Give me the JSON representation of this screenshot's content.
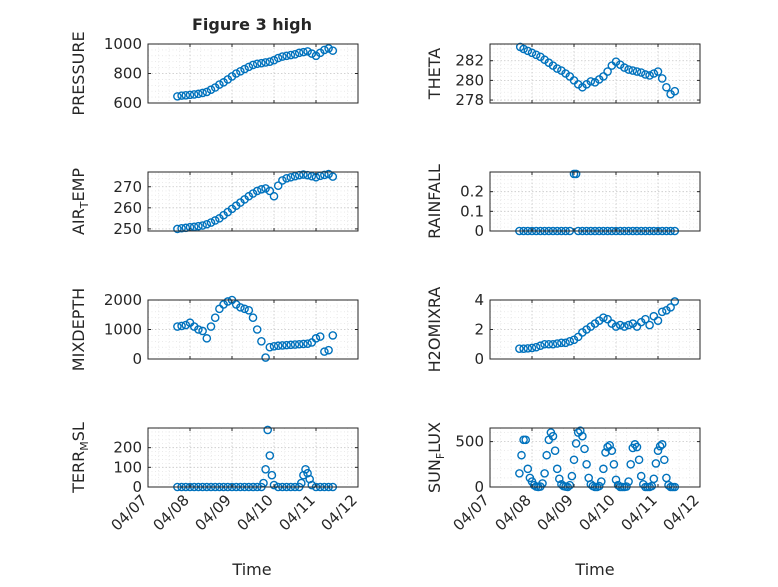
{
  "figure": {
    "title": "Figure 3 high",
    "xlabel": "Time"
  },
  "colors": {
    "marker": "#0072BD",
    "axes": "#262626"
  },
  "chart_data": [
    {
      "type": "scatter",
      "ylabel": "PRESSURE",
      "ylim": [
        600,
        1000
      ],
      "yticks": [
        600,
        800,
        1000
      ],
      "grid": true,
      "x": [
        7.7,
        7.8,
        7.9,
        8.0,
        8.1,
        8.2,
        8.3,
        8.4,
        8.5,
        8.6,
        8.7,
        8.8,
        8.9,
        9.0,
        9.1,
        9.2,
        9.3,
        9.4,
        9.5,
        9.6,
        9.7,
        9.8,
        9.9,
        10.0,
        10.1,
        10.2,
        10.3,
        10.4,
        10.5,
        10.6,
        10.7,
        10.8,
        10.9,
        11.0,
        11.1,
        11.2,
        11.3,
        11.4
      ],
      "y": [
        645,
        650,
        652,
        655,
        658,
        662,
        668,
        675,
        690,
        705,
        725,
        740,
        760,
        780,
        800,
        815,
        830,
        845,
        858,
        866,
        870,
        875,
        880,
        890,
        905,
        915,
        920,
        925,
        930,
        940,
        945,
        950,
        935,
        920,
        940,
        960,
        970,
        955
      ]
    },
    {
      "type": "scatter",
      "ylabel": "THETA",
      "ylim": [
        277.7,
        283.7
      ],
      "yticks": [
        278,
        280,
        282
      ],
      "grid": true,
      "x": [
        7.72,
        7.8,
        7.9,
        8.0,
        8.1,
        8.2,
        8.3,
        8.4,
        8.5,
        8.6,
        8.7,
        8.8,
        8.9,
        9.0,
        9.1,
        9.2,
        9.3,
        9.4,
        9.5,
        9.6,
        9.7,
        9.8,
        9.9,
        10.0,
        10.1,
        10.2,
        10.3,
        10.4,
        10.5,
        10.6,
        10.7,
        10.8,
        10.9,
        11.0,
        11.1,
        11.2,
        11.3,
        11.4
      ],
      "y": [
        283.4,
        283.2,
        283.0,
        282.8,
        282.6,
        282.4,
        282.1,
        281.8,
        281.5,
        281.2,
        281.0,
        280.7,
        280.4,
        280.0,
        279.6,
        279.3,
        279.6,
        279.9,
        279.8,
        280.1,
        280.4,
        280.9,
        281.5,
        281.9,
        281.6,
        281.3,
        281.1,
        281.0,
        280.9,
        280.8,
        280.6,
        280.5,
        280.7,
        280.9,
        280.2,
        279.3,
        278.6,
        278.9
      ]
    },
    {
      "type": "scatter",
      "ylabel": "AIR_TEMP",
      "ylim": [
        249,
        277
      ],
      "yticks": [
        250,
        260,
        270
      ],
      "grid": true,
      "x": [
        7.7,
        7.8,
        7.9,
        8.0,
        8.1,
        8.2,
        8.3,
        8.4,
        8.5,
        8.6,
        8.7,
        8.8,
        8.9,
        9.0,
        9.1,
        9.2,
        9.3,
        9.4,
        9.5,
        9.6,
        9.7,
        9.8,
        9.9,
        10.0,
        10.1,
        10.2,
        10.3,
        10.4,
        10.5,
        10.6,
        10.7,
        10.8,
        10.9,
        11.0,
        11.1,
        11.2,
        11.3,
        11.4
      ],
      "y": [
        250.0,
        250.3,
        250.5,
        250.8,
        251.0,
        251.3,
        251.6,
        252.2,
        253.0,
        254.0,
        255.0,
        256.5,
        258.0,
        259.5,
        261.0,
        262.5,
        264.0,
        265.5,
        266.8,
        268.0,
        268.8,
        269.2,
        268.0,
        265.5,
        270.5,
        273.0,
        274.0,
        274.5,
        275.0,
        275.5,
        275.8,
        275.5,
        275.0,
        274.5,
        275.2,
        275.6,
        276.0,
        274.8
      ]
    },
    {
      "type": "scatter",
      "ylabel": "RAINFALL",
      "ylim": [
        0,
        0.3
      ],
      "yticks": [
        0,
        0.1,
        0.2
      ],
      "grid": true,
      "x": [
        7.7,
        7.8,
        7.9,
        8.0,
        8.1,
        8.2,
        8.3,
        8.4,
        8.5,
        8.6,
        8.7,
        8.8,
        8.9,
        9.0,
        9.05,
        9.1,
        9.2,
        9.3,
        9.4,
        9.5,
        9.6,
        9.7,
        9.8,
        9.9,
        10.0,
        10.1,
        10.2,
        10.3,
        10.4,
        10.5,
        10.6,
        10.7,
        10.8,
        10.9,
        11.0,
        11.1,
        11.2,
        11.3,
        11.4
      ],
      "y": [
        0,
        0,
        0,
        0,
        0,
        0,
        0,
        0,
        0,
        0,
        0,
        0,
        0,
        0.29,
        0.29,
        0,
        0,
        0,
        0,
        0,
        0,
        0,
        0,
        0,
        0,
        0,
        0,
        0,
        0,
        0,
        0,
        0,
        0,
        0,
        0,
        0,
        0,
        0,
        0
      ]
    },
    {
      "type": "scatter",
      "ylabel": "MIXDEPTH",
      "ylim": [
        0,
        2000
      ],
      "yticks": [
        0,
        1000,
        2000
      ],
      "grid": true,
      "x": [
        7.7,
        7.8,
        7.9,
        8.0,
        8.1,
        8.2,
        8.3,
        8.4,
        8.5,
        8.6,
        8.7,
        8.8,
        8.9,
        9.0,
        9.1,
        9.2,
        9.3,
        9.4,
        9.5,
        9.6,
        9.7,
        9.8,
        9.9,
        10.0,
        10.1,
        10.2,
        10.3,
        10.4,
        10.5,
        10.6,
        10.7,
        10.8,
        10.9,
        11.0,
        11.1,
        11.2,
        11.3,
        11.4
      ],
      "y": [
        1100,
        1120,
        1150,
        1230,
        1100,
        1000,
        950,
        700,
        1100,
        1400,
        1700,
        1850,
        1950,
        2000,
        1850,
        1750,
        1700,
        1650,
        1400,
        1000,
        600,
        50,
        400,
        430,
        450,
        460,
        470,
        480,
        490,
        500,
        510,
        520,
        560,
        700,
        760,
        250,
        300,
        800
      ]
    },
    {
      "type": "scatter",
      "ylabel": "H2OMIXRA",
      "ylim": [
        0,
        4
      ],
      "yticks": [
        0,
        2,
        4
      ],
      "grid": true,
      "x": [
        7.7,
        7.8,
        7.9,
        8.0,
        8.1,
        8.2,
        8.3,
        8.4,
        8.5,
        8.6,
        8.7,
        8.8,
        8.9,
        9.0,
        9.1,
        9.2,
        9.3,
        9.4,
        9.5,
        9.6,
        9.7,
        9.8,
        9.9,
        10.0,
        10.1,
        10.2,
        10.3,
        10.4,
        10.5,
        10.6,
        10.7,
        10.8,
        10.9,
        11.0,
        11.1,
        11.2,
        11.3,
        11.4
      ],
      "y": [
        0.7,
        0.7,
        0.72,
        0.75,
        0.8,
        0.9,
        1.0,
        1.0,
        1.0,
        1.05,
        1.1,
        1.1,
        1.2,
        1.3,
        1.5,
        1.8,
        2.0,
        2.2,
        2.4,
        2.6,
        2.8,
        2.7,
        2.4,
        2.2,
        2.3,
        2.2,
        2.3,
        2.4,
        2.2,
        2.5,
        2.7,
        2.3,
        2.9,
        2.6,
        3.2,
        3.3,
        3.5,
        3.9
      ]
    },
    {
      "type": "scatter",
      "ylabel": "TERR_MSL",
      "ylim": [
        0,
        300
      ],
      "yticks": [
        0,
        100,
        200
      ],
      "grid": true,
      "x": [
        7.7,
        7.8,
        7.9,
        8.0,
        8.1,
        8.2,
        8.3,
        8.4,
        8.5,
        8.6,
        8.7,
        8.8,
        8.9,
        9.0,
        9.1,
        9.2,
        9.3,
        9.4,
        9.5,
        9.6,
        9.7,
        9.75,
        9.8,
        9.85,
        9.9,
        9.95,
        10.0,
        10.1,
        10.2,
        10.3,
        10.4,
        10.5,
        10.6,
        10.65,
        10.7,
        10.75,
        10.8,
        10.85,
        10.9,
        11.0,
        11.1,
        11.2,
        11.3,
        11.4
      ],
      "y": [
        0,
        0,
        0,
        0,
        0,
        0,
        0,
        0,
        0,
        0,
        0,
        0,
        0,
        0,
        0,
        0,
        0,
        0,
        0,
        0,
        0,
        20,
        90,
        290,
        160,
        60,
        10,
        0,
        0,
        0,
        0,
        0,
        0,
        20,
        60,
        90,
        70,
        40,
        10,
        0,
        0,
        0,
        0,
        0
      ]
    },
    {
      "type": "scatter",
      "ylabel": "SUN_FLUX",
      "ylim": [
        0,
        650
      ],
      "yticks": [
        0,
        500
      ],
      "grid": true,
      "x": [
        7.7,
        7.75,
        7.8,
        7.85,
        7.9,
        7.95,
        8.0,
        8.05,
        8.1,
        8.15,
        8.2,
        8.25,
        8.3,
        8.35,
        8.4,
        8.45,
        8.5,
        8.55,
        8.6,
        8.65,
        8.7,
        8.75,
        8.8,
        8.85,
        8.9,
        8.95,
        9.0,
        9.05,
        9.1,
        9.15,
        9.2,
        9.25,
        9.3,
        9.35,
        9.4,
        9.45,
        9.5,
        9.55,
        9.6,
        9.65,
        9.7,
        9.75,
        9.8,
        9.85,
        9.9,
        9.95,
        10.0,
        10.05,
        10.1,
        10.15,
        10.2,
        10.25,
        10.3,
        10.35,
        10.4,
        10.45,
        10.5,
        10.55,
        10.6,
        10.65,
        10.7,
        10.75,
        10.8,
        10.85,
        10.9,
        10.95,
        11.0,
        11.05,
        11.1,
        11.15,
        11.2,
        11.25,
        11.3,
        11.35,
        11.4
      ],
      "y": [
        150,
        350,
        520,
        520,
        200,
        100,
        60,
        20,
        5,
        0,
        5,
        40,
        150,
        350,
        520,
        600,
        560,
        400,
        200,
        90,
        30,
        10,
        5,
        0,
        20,
        120,
        300,
        480,
        600,
        620,
        560,
        420,
        250,
        100,
        30,
        10,
        0,
        0,
        10,
        60,
        200,
        380,
        440,
        460,
        400,
        250,
        80,
        20,
        0,
        0,
        0,
        5,
        60,
        250,
        430,
        470,
        440,
        300,
        120,
        30,
        0,
        0,
        0,
        10,
        90,
        260,
        400,
        450,
        470,
        300,
        100,
        20,
        0,
        0,
        0
      ]
    }
  ],
  "xaxis": {
    "xlim": [
      7.0,
      12.0
    ],
    "ticks": [
      7,
      8,
      9,
      10,
      11,
      12
    ],
    "tick_labels": [
      "04/07",
      "04/08",
      "04/09",
      "04/10",
      "04/11",
      "04/12"
    ]
  }
}
